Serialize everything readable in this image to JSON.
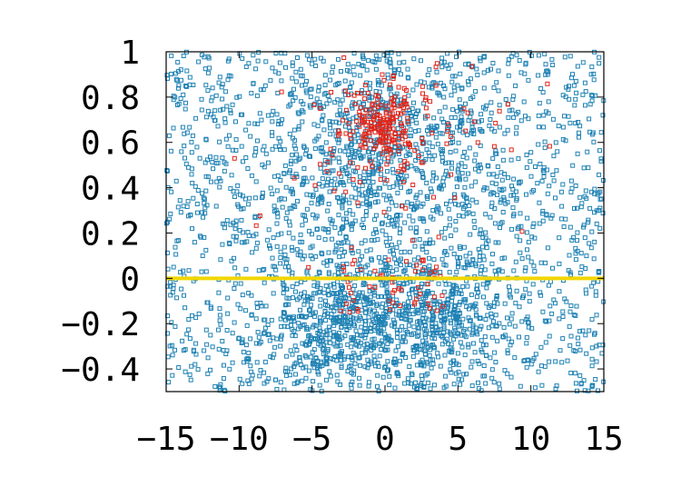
{
  "chart_data": {
    "type": "scatter",
    "title": "",
    "xlabel": "",
    "ylabel": "",
    "xlim": [
      -15,
      15
    ],
    "ylim": [
      -0.5,
      1
    ],
    "grid": false,
    "x_ticks": [
      -15,
      -10,
      -5,
      0,
      5,
      10,
      15
    ],
    "y_ticks": [
      -0.4,
      -0.2,
      0,
      0.2,
      0.4,
      0.6,
      0.8,
      1
    ],
    "x_tick_labels": [
      "−15",
      "−10",
      "−5",
      "0",
      "5",
      "10",
      "15"
    ],
    "y_tick_labels": [
      "−0.4",
      "−0.2",
      "0",
      "0.2",
      "0.4",
      "0.6",
      "0.8",
      "1"
    ],
    "reference_line": {
      "y": 0,
      "color": "#f2d600"
    },
    "series": [
      {
        "color": "#1f82b4",
        "marker": "hollow-square",
        "point_count": 3200,
        "distribution": "uniform background with dense lobes near x=-3 and x=3 below y=0 and a cluster near x=0, y=0.6",
        "representative_points": [
          [
            -14.5,
            0.95
          ],
          [
            -12,
            0.7
          ],
          [
            -9,
            0.45
          ],
          [
            -6,
            0.2
          ],
          [
            -3,
            -0.25
          ],
          [
            -2.5,
            -0.35
          ],
          [
            0,
            0.7
          ],
          [
            1,
            0.5
          ],
          [
            3,
            -0.15
          ],
          [
            4,
            -0.25
          ],
          [
            7,
            0.3
          ],
          [
            10,
            0.6
          ],
          [
            13,
            -0.1
          ],
          [
            14.5,
            0.85
          ]
        ]
      },
      {
        "color": "#e0261a",
        "marker": "hollow-square",
        "point_count": 330,
        "distribution": "concentrated around x=0, y=0.65, sparse elsewhere",
        "representative_points": [
          [
            0,
            0.7
          ],
          [
            0.5,
            0.65
          ],
          [
            -0.5,
            0.75
          ],
          [
            0.3,
            0.55
          ],
          [
            -1,
            0.6
          ],
          [
            1.5,
            0.7
          ],
          [
            -3,
            0.85
          ],
          [
            2,
            0.45
          ],
          [
            -5,
            0.65
          ],
          [
            6,
            0.6
          ],
          [
            -2,
            -0.1
          ],
          [
            1,
            -0.05
          ]
        ]
      }
    ]
  }
}
